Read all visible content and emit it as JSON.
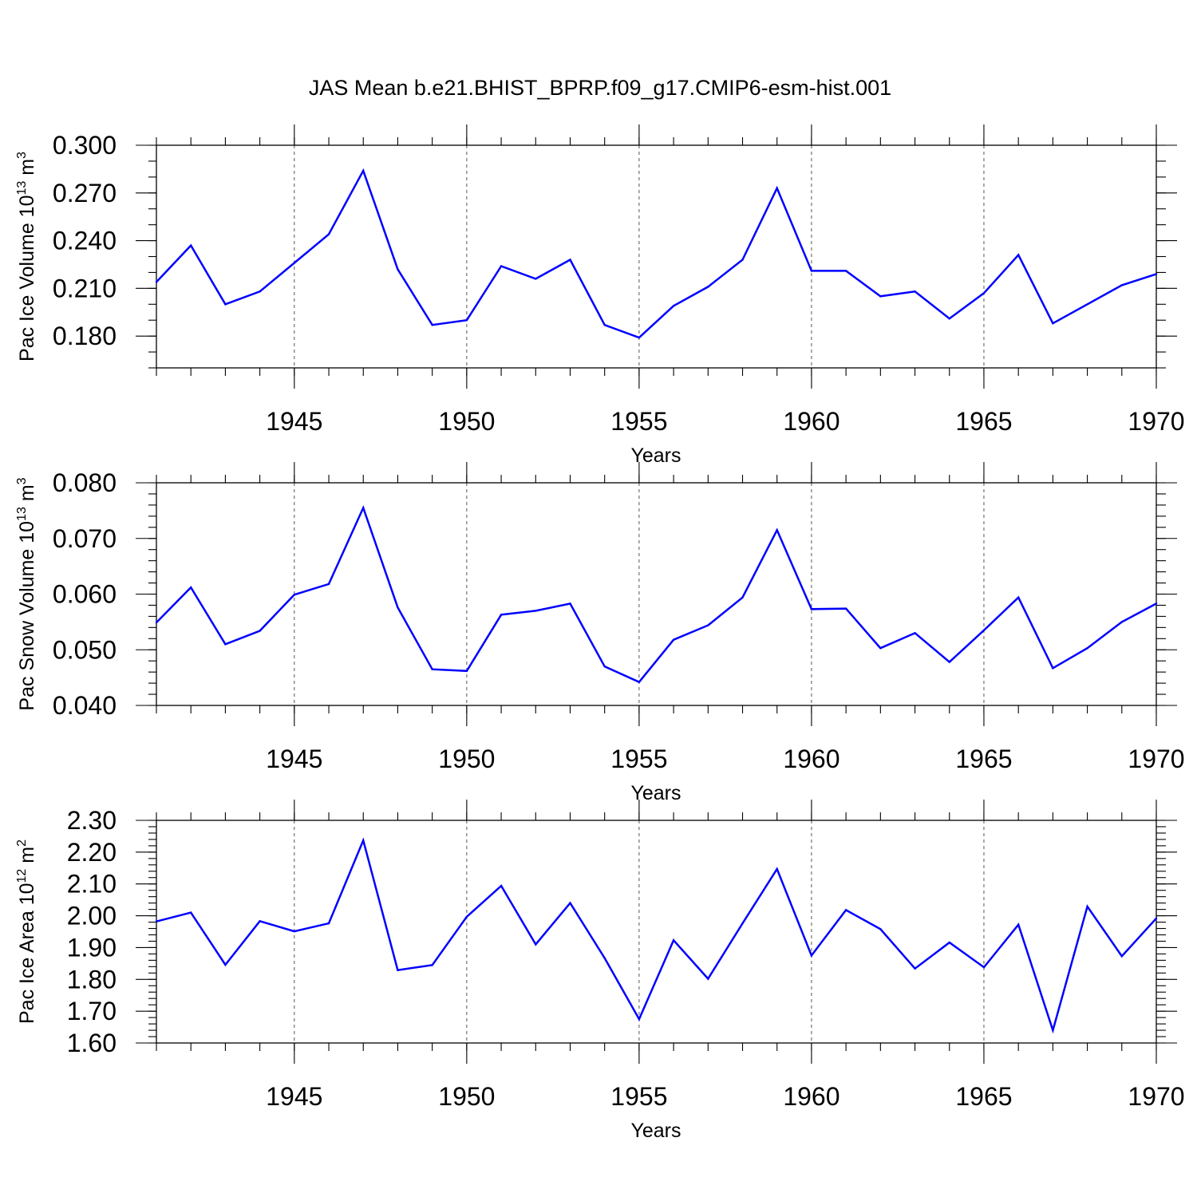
{
  "title": "JAS Mean b.e21.BHIST_BPRP.f09_g17.CMIP6-esm-hist.001",
  "chart_data": [
    {
      "type": "line",
      "xlabel": "Years",
      "ylabel": {
        "text": "Pac Ice Volume 10",
        "sup": "13",
        "unit": " m",
        "unit_sup": "3"
      },
      "xlim": [
        1941,
        1970
      ],
      "ylim": [
        0.16,
        0.3
      ],
      "xticks": [
        1945,
        1950,
        1955,
        1960,
        1965,
        1970
      ],
      "yticks": [
        0.3,
        0.27,
        0.24,
        0.21,
        0.18
      ],
      "ytick_labels": [
        "0.300",
        "0.270",
        "0.240",
        "0.210",
        "0.180"
      ],
      "grid": "vertical dashed at major x ticks",
      "series": [
        {
          "color": "#0000ff",
          "x": [
            1941,
            1942,
            1943,
            1944,
            1945,
            1946,
            1947,
            1948,
            1949,
            1950,
            1951,
            1952,
            1953,
            1954,
            1955,
            1956,
            1957,
            1958,
            1959,
            1960,
            1961,
            1962,
            1963,
            1964,
            1965,
            1966,
            1967,
            1968,
            1969,
            1970
          ],
          "values": [
            0.214,
            0.237,
            0.2,
            0.208,
            0.226,
            0.244,
            0.284,
            0.222,
            0.187,
            0.19,
            0.224,
            0.216,
            0.228,
            0.187,
            0.179,
            0.199,
            0.211,
            0.228,
            0.273,
            0.221,
            0.221,
            0.205,
            0.208,
            0.191,
            0.207,
            0.231,
            0.188,
            0.2,
            0.212,
            0.219
          ]
        }
      ]
    },
    {
      "type": "line",
      "xlabel": "Years",
      "ylabel": {
        "text": "Pac Snow Volume 10",
        "sup": "13",
        "unit": " m",
        "unit_sup": "3"
      },
      "xlim": [
        1941,
        1970
      ],
      "ylim": [
        0.04,
        0.08
      ],
      "xticks": [
        1945,
        1950,
        1955,
        1960,
        1965,
        1970
      ],
      "yticks": [
        0.08,
        0.07,
        0.06,
        0.05,
        0.04
      ],
      "ytick_labels": [
        "0.080",
        "0.070",
        "0.060",
        "0.050",
        "0.040"
      ],
      "grid": "vertical dashed at major x ticks",
      "series": [
        {
          "color": "#0000ff",
          "x": [
            1941,
            1942,
            1943,
            1944,
            1945,
            1946,
            1947,
            1948,
            1949,
            1950,
            1951,
            1952,
            1953,
            1954,
            1955,
            1956,
            1957,
            1958,
            1959,
            1960,
            1961,
            1962,
            1963,
            1964,
            1965,
            1966,
            1967,
            1968,
            1969,
            1970
          ],
          "values": [
            0.0549,
            0.0612,
            0.051,
            0.0534,
            0.0599,
            0.0618,
            0.0755,
            0.0576,
            0.0465,
            0.0462,
            0.0563,
            0.057,
            0.0583,
            0.047,
            0.0442,
            0.0518,
            0.0544,
            0.0594,
            0.0715,
            0.0573,
            0.0574,
            0.0503,
            0.053,
            0.0478,
            0.0535,
            0.0594,
            0.0467,
            0.0503,
            0.055,
            0.0583
          ]
        }
      ]
    },
    {
      "type": "line",
      "xlabel": "Years",
      "ylabel": {
        "text": "Pac Ice Area 10",
        "sup": "12",
        "unit": " m",
        "unit_sup": "2"
      },
      "xlim": [
        1941,
        1970
      ],
      "ylim": [
        1.6,
        2.3
      ],
      "xticks": [
        1945,
        1950,
        1955,
        1960,
        1965,
        1970
      ],
      "yticks": [
        2.3,
        2.2,
        2.1,
        2.0,
        1.9,
        1.8,
        1.7,
        1.6
      ],
      "ytick_labels": [
        "2.30",
        "2.20",
        "2.10",
        "2.00",
        "1.90",
        "1.80",
        "1.70",
        "1.60"
      ],
      "grid": "vertical dashed at major x ticks",
      "series": [
        {
          "color": "#0000ff",
          "x": [
            1941,
            1942,
            1943,
            1944,
            1945,
            1946,
            1947,
            1948,
            1949,
            1950,
            1951,
            1952,
            1953,
            1954,
            1955,
            1956,
            1957,
            1958,
            1959,
            1960,
            1961,
            1962,
            1963,
            1964,
            1965,
            1966,
            1967,
            1968,
            1969,
            1970
          ],
          "values": [
            1.982,
            2.01,
            1.846,
            1.983,
            1.951,
            1.976,
            2.237,
            1.829,
            1.845,
            1.997,
            2.094,
            1.91,
            2.04,
            1.867,
            1.675,
            1.923,
            1.802,
            1.976,
            2.147,
            1.875,
            2.018,
            1.958,
            1.834,
            1.916,
            1.838,
            1.972,
            1.64,
            2.029,
            1.873,
            1.992
          ]
        }
      ]
    }
  ]
}
